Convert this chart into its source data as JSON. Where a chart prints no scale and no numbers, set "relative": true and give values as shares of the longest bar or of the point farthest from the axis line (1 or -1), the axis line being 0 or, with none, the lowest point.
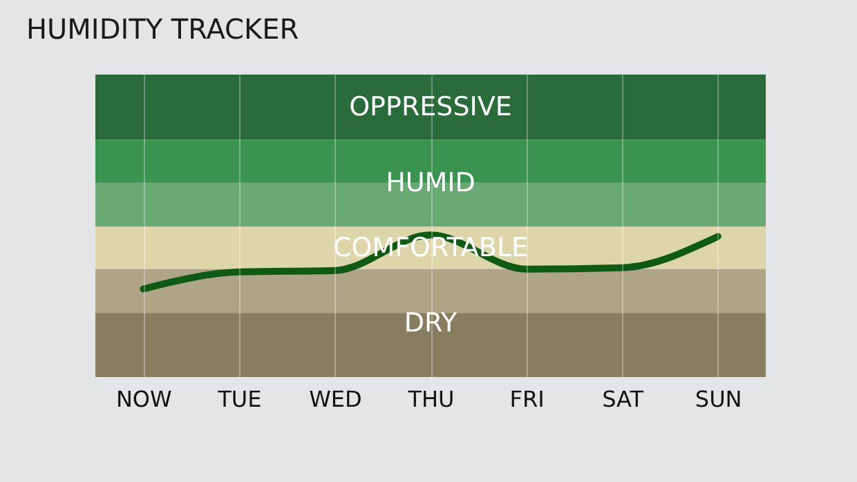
{
  "chart_data": {
    "type": "line",
    "title": "HUMIDITY TRACKER",
    "relative": true,
    "grid": "x",
    "marker": "none",
    "categories": [
      "NOW",
      "TUE",
      "WED",
      "THU",
      "FRI",
      "SAT",
      "SUN"
    ],
    "series": [
      {
        "color": "#0f5a14",
        "values": [
          0.62,
          0.74,
          0.75,
          1,
          0.76,
          0.77,
          0.99
        ]
      }
    ],
    "bands": [
      {
        "axis": "y",
        "from": 1.67,
        "to": 2.13,
        "label": "OPPRESSIVE",
        "color": "#2a6b3c"
      },
      {
        "axis": "y",
        "from": 1.06,
        "to": 1.67,
        "label": "HUMID",
        "color": "#3a9450"
      },
      {
        "axis": "y",
        "from": 1.06,
        "to": 1.37,
        "label": null,
        "color": "#68a975"
      },
      {
        "axis": "y",
        "from": 0.76,
        "to": 1.06,
        "label": "COMFORTABLE",
        "color": "#ddd6aa"
      },
      {
        "axis": "y",
        "from": 0,
        "to": 0.76,
        "label": "DRY",
        "color": "#aea586"
      },
      {
        "axis": "y",
        "from": 0,
        "to": 0.45,
        "label": null,
        "color": "#877e62"
      }
    ]
  }
}
